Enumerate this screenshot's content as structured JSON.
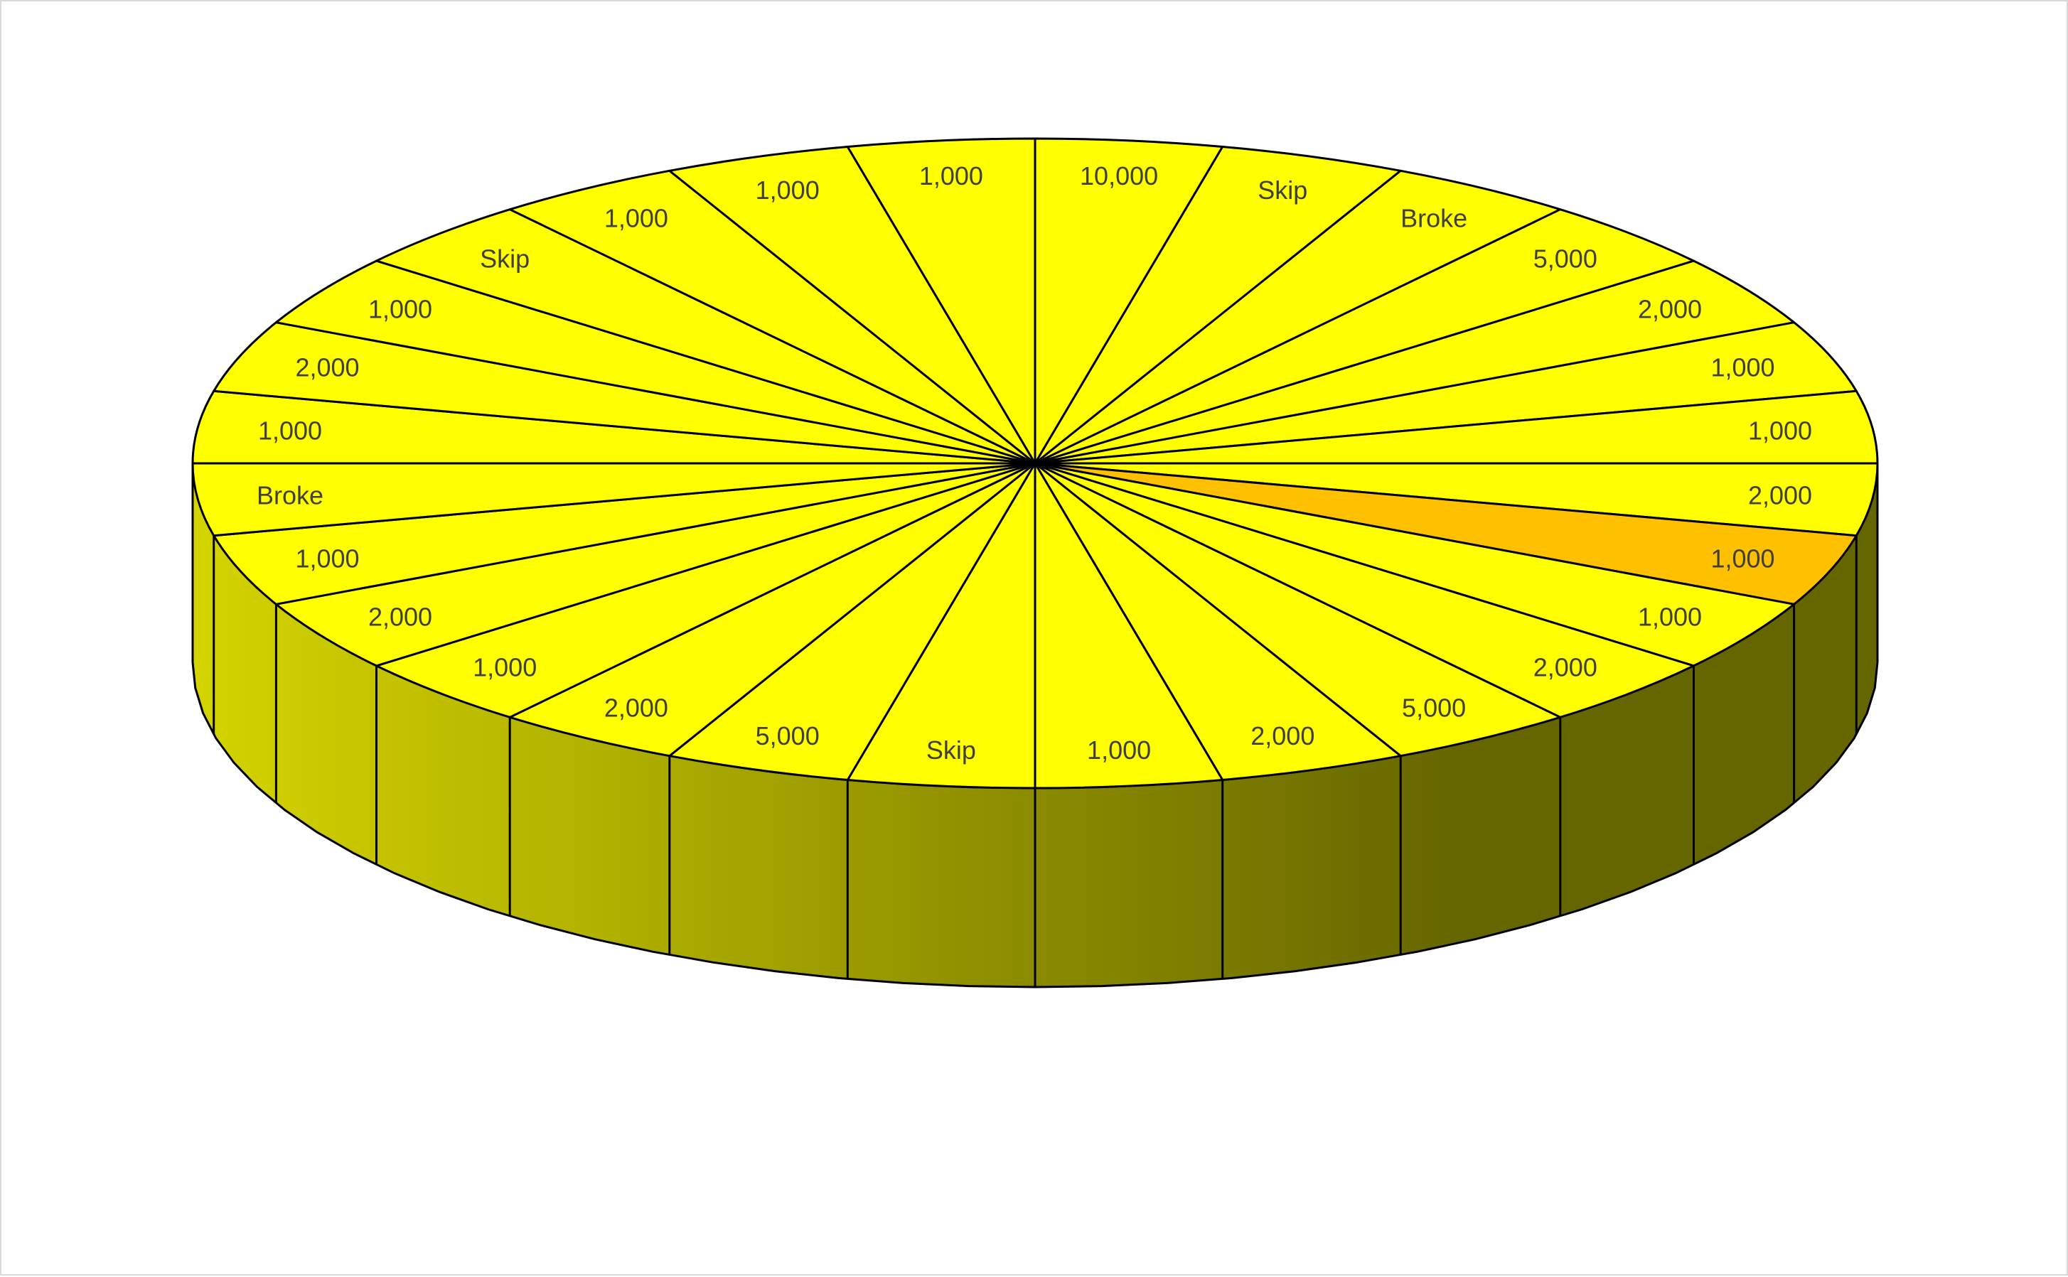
{
  "chart_data": {
    "type": "pie",
    "style": "3d-pie",
    "title": "",
    "start": "top",
    "direction": "clockwise",
    "equal_slices": true,
    "colors": {
      "top": "#ffff00",
      "highlight": "#ffc000",
      "side_light": "#d4d400",
      "side_dark": "#666600",
      "outline": "#000000",
      "label": "#404040"
    },
    "highlighted_index": 8,
    "categories": [
      "10,000",
      "Skip",
      "Broke",
      "5,000",
      "2,000",
      "1,000",
      "1,000",
      "2,000",
      "1,000",
      "1,000",
      "2,000",
      "5,000",
      "2,000",
      "1,000",
      "Skip",
      "5,000",
      "2,000",
      "1,000",
      "2,000",
      "1,000",
      "Broke",
      "1,000",
      "2,000",
      "1,000",
      "Skip",
      "1,000",
      "1,000",
      "1,000"
    ],
    "values": [
      1,
      1,
      1,
      1,
      1,
      1,
      1,
      1,
      1,
      1,
      1,
      1,
      1,
      1,
      1,
      1,
      1,
      1,
      1,
      1,
      1,
      1,
      1,
      1,
      1,
      1,
      1,
      1
    ]
  }
}
